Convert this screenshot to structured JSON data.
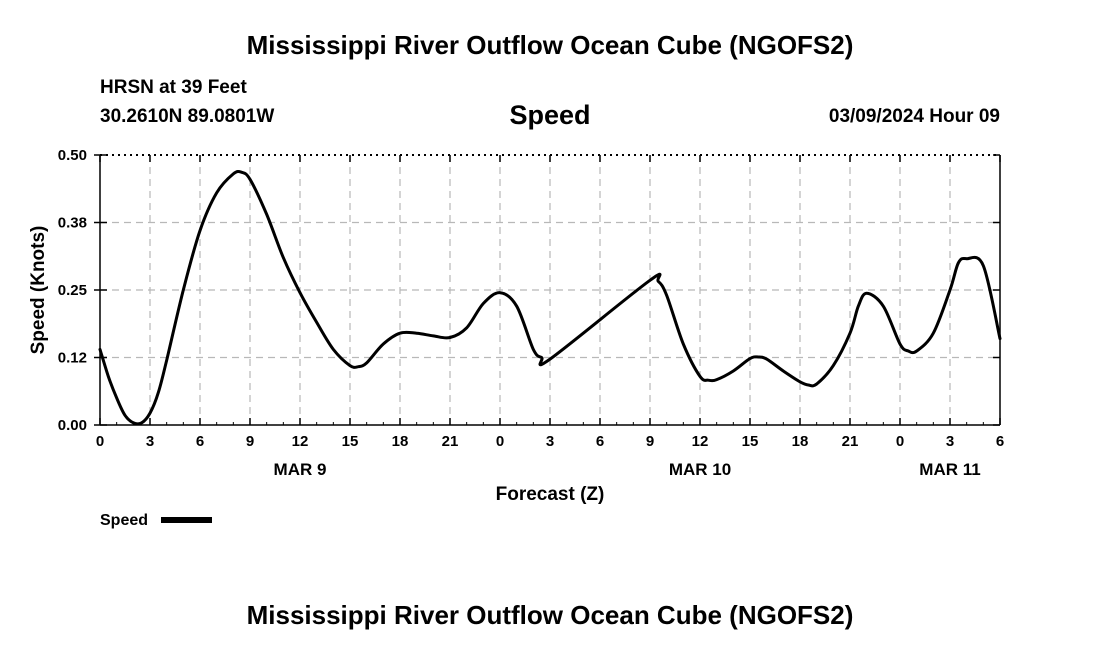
{
  "header": {
    "title": "Mississippi River Outflow Ocean Cube (NGOFS2)",
    "station": "HRSN at 39 Feet",
    "coords": "30.2610N  89.0801W",
    "datetime": "03/09/2024 Hour 09"
  },
  "footer": {
    "title": "Mississippi River Outflow Ocean Cube (NGOFS2)"
  },
  "chart_data": {
    "type": "line",
    "title": "Speed",
    "xlabel": "Forecast (Z)",
    "ylabel": "Speed (Knots)",
    "xlim": [
      0,
      54
    ],
    "ylim": [
      0,
      0.5
    ],
    "y_ticks": [
      0,
      0.125,
      0.25,
      0.375,
      0.5
    ],
    "y_tick_labels": [
      "0.00",
      "0.12",
      "0.25",
      "0.38",
      "0.50"
    ],
    "x_ticks": [
      0,
      3,
      6,
      9,
      12,
      15,
      18,
      21,
      24,
      27,
      30,
      33,
      36,
      39,
      42,
      45,
      48,
      51,
      54
    ],
    "x_tick_labels": [
      "0",
      "3",
      "6",
      "9",
      "12",
      "15",
      "18",
      "21",
      "0",
      "3",
      "6",
      "9",
      "12",
      "15",
      "18",
      "21",
      "0",
      "3",
      "6"
    ],
    "date_labels": [
      {
        "x": 12,
        "label": "MAR 9"
      },
      {
        "x": 36,
        "label": "MAR 10"
      },
      {
        "x": 51,
        "label": "MAR 11"
      }
    ],
    "grid": true,
    "legend": {
      "position": "bottom-left",
      "entries": [
        "Speed"
      ]
    },
    "series": [
      {
        "name": "Speed",
        "color": "#000000",
        "x": [
          0,
          0.5,
          1,
          1.5,
          2,
          2.5,
          3,
          3.5,
          4,
          5,
          6,
          7,
          8,
          8.5,
          9,
          10,
          11,
          12,
          13,
          14,
          15,
          15.5,
          16,
          17,
          18,
          19,
          20,
          21,
          22,
          23,
          24,
          25,
          26,
          26.5,
          27,
          33,
          33.5,
          34,
          35,
          36,
          36.5,
          37,
          38,
          39,
          39.5,
          40,
          41,
          42,
          42.5,
          43,
          44,
          45,
          45.5,
          46,
          47,
          48,
          48.5,
          49,
          50,
          51,
          51.5,
          52,
          53,
          54
        ],
        "y": [
          0.14,
          0.09,
          0.05,
          0.018,
          0.004,
          0.004,
          0.022,
          0.06,
          0.12,
          0.25,
          0.36,
          0.43,
          0.465,
          0.468,
          0.455,
          0.39,
          0.31,
          0.245,
          0.19,
          0.14,
          0.11,
          0.108,
          0.115,
          0.15,
          0.17,
          0.17,
          0.165,
          0.162,
          0.18,
          0.225,
          0.245,
          0.22,
          0.14,
          0.125,
          0.122,
          0.268,
          0.266,
          0.24,
          0.15,
          0.09,
          0.083,
          0.084,
          0.1,
          0.123,
          0.126,
          0.122,
          0.1,
          0.08,
          0.074,
          0.076,
          0.11,
          0.17,
          0.22,
          0.244,
          0.22,
          0.15,
          0.137,
          0.137,
          0.17,
          0.25,
          0.3,
          0.308,
          0.295,
          0.16
        ]
      }
    ]
  }
}
